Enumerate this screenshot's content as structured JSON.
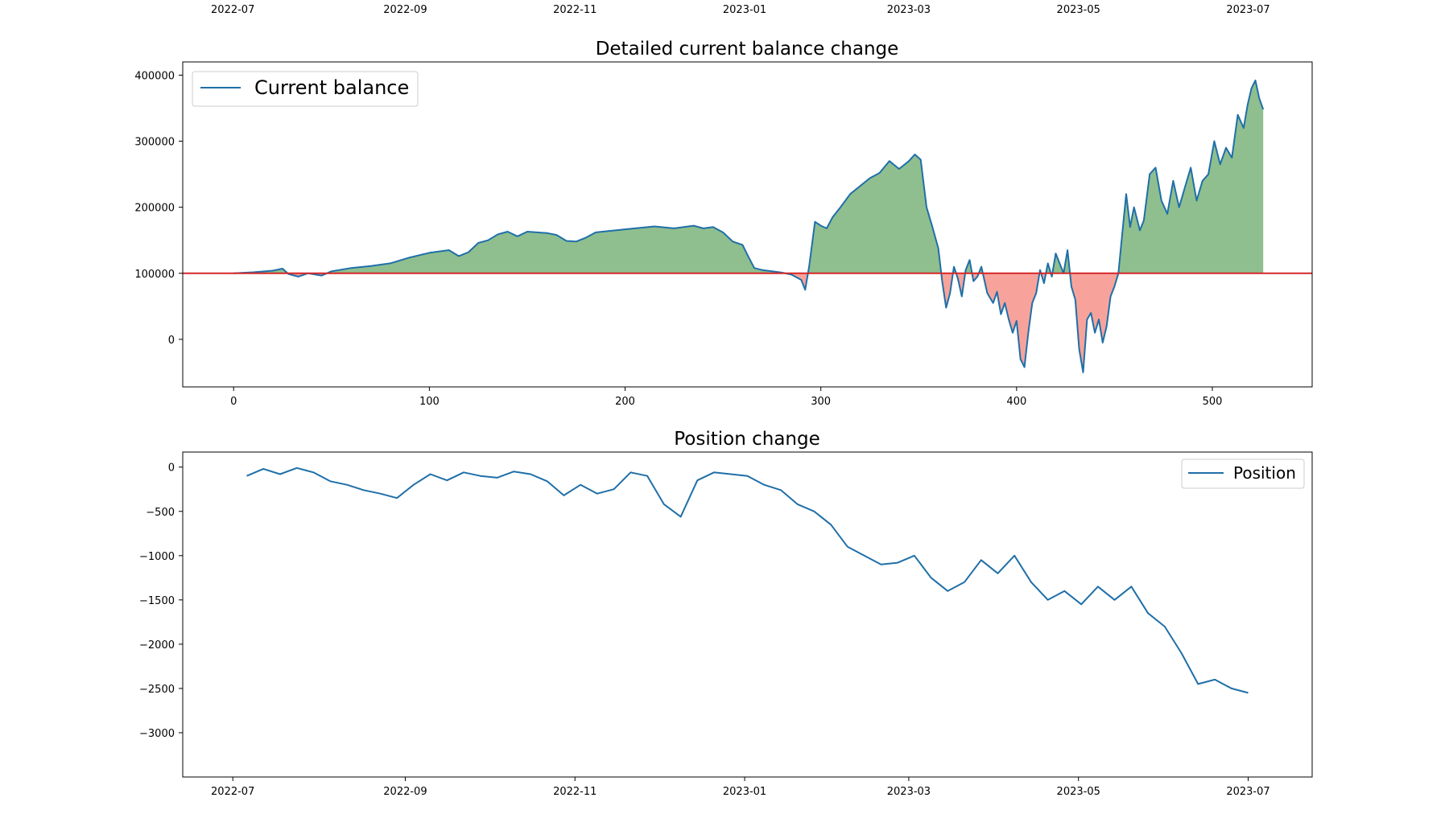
{
  "colors": {
    "line": "#1f6fa8",
    "profit_fill": "#8fbf8f",
    "loss_fill": "#f7a39b",
    "baseline": "#d62728",
    "axes": "#000000",
    "legend_border": "#cccccc"
  },
  "chart_data": [
    {
      "type": "date-axis",
      "position": "top",
      "tick_labels": [
        "2022-07",
        "2022-09",
        "2022-11",
        "2023-01",
        "2023-03",
        "2023-05",
        "2023-07"
      ],
      "tick_dates": [
        "2022-07-01",
        "2022-09-01",
        "2022-11-01",
        "2023-01-01",
        "2023-03-01",
        "2023-05-01",
        "2023-07-01"
      ],
      "xlim": [
        "2022-06-13",
        "2023-07-24"
      ]
    },
    {
      "type": "area",
      "title": "Detailed current balance change",
      "legend": {
        "entries": [
          "Current balance"
        ],
        "placement": "top-left"
      },
      "xlim": [
        -26,
        551
      ],
      "ylim": [
        -72000,
        420000
      ],
      "x_ticks": [
        0,
        100,
        200,
        300,
        400,
        500
      ],
      "y_ticks": [
        0,
        100000,
        200000,
        300000,
        400000
      ],
      "baseline": 100000,
      "fill_above": "profit",
      "fill_below": "loss",
      "series": [
        {
          "name": "Current balance",
          "points": [
            [
              0,
              100000
            ],
            [
              10,
              101500
            ],
            [
              20,
              104000
            ],
            [
              25,
              107000
            ],
            [
              28,
              99000
            ],
            [
              33,
              95000
            ],
            [
              38,
              100000
            ],
            [
              45,
              96500
            ],
            [
              50,
              103000
            ],
            [
              60,
              108000
            ],
            [
              70,
              111000
            ],
            [
              80,
              115000
            ],
            [
              90,
              124000
            ],
            [
              100,
              131000
            ],
            [
              110,
              135000
            ],
            [
              115,
              126000
            ],
            [
              120,
              132000
            ],
            [
              125,
              146000
            ],
            [
              130,
              150000
            ],
            [
              135,
              159000
            ],
            [
              140,
              163000
            ],
            [
              145,
              156000
            ],
            [
              150,
              163000
            ],
            [
              160,
              161000
            ],
            [
              165,
              158000
            ],
            [
              170,
              149000
            ],
            [
              175,
              148000
            ],
            [
              180,
              154000
            ],
            [
              185,
              162000
            ],
            [
              195,
              165000
            ],
            [
              205,
              168000
            ],
            [
              215,
              171000
            ],
            [
              225,
              168000
            ],
            [
              235,
              172000
            ],
            [
              240,
              168000
            ],
            [
              245,
              170000
            ],
            [
              250,
              162000
            ],
            [
              255,
              148000
            ],
            [
              260,
              143000
            ],
            [
              263,
              125000
            ],
            [
              266,
              108000
            ],
            [
              270,
              105000
            ],
            [
              275,
              103000
            ],
            [
              280,
              101000
            ],
            [
              285,
              98000
            ],
            [
              290,
              90000
            ],
            [
              292,
              75000
            ],
            [
              294,
              110000
            ],
            [
              297,
              178000
            ],
            [
              300,
              172000
            ],
            [
              303,
              168000
            ],
            [
              306,
              185000
            ],
            [
              310,
              200000
            ],
            [
              315,
              220000
            ],
            [
              320,
              232000
            ],
            [
              325,
              244000
            ],
            [
              330,
              252000
            ],
            [
              335,
              270000
            ],
            [
              340,
              258000
            ],
            [
              345,
              270000
            ],
            [
              348,
              280000
            ],
            [
              351,
              272000
            ],
            [
              354,
              200000
            ],
            [
              357,
              170000
            ],
            [
              360,
              138000
            ],
            [
              362,
              88000
            ],
            [
              364,
              48000
            ],
            [
              366,
              70000
            ],
            [
              368,
              110000
            ],
            [
              370,
              92000
            ],
            [
              372,
              65000
            ],
            [
              374,
              105000
            ],
            [
              376,
              120000
            ],
            [
              378,
              88000
            ],
            [
              380,
              95000
            ],
            [
              382,
              110000
            ],
            [
              385,
              70000
            ],
            [
              388,
              55000
            ],
            [
              390,
              72000
            ],
            [
              392,
              38000
            ],
            [
              394,
              55000
            ],
            [
              396,
              30000
            ],
            [
              398,
              10000
            ],
            [
              400,
              28000
            ],
            [
              402,
              -30000
            ],
            [
              404,
              -42000
            ],
            [
              406,
              10000
            ],
            [
              408,
              55000
            ],
            [
              410,
              70000
            ],
            [
              412,
              105000
            ],
            [
              414,
              85000
            ],
            [
              416,
              115000
            ],
            [
              418,
              95000
            ],
            [
              420,
              130000
            ],
            [
              422,
              115000
            ],
            [
              424,
              100000
            ],
            [
              426,
              135000
            ],
            [
              428,
              80000
            ],
            [
              430,
              60000
            ],
            [
              432,
              -15000
            ],
            [
              434,
              -50000
            ],
            [
              436,
              30000
            ],
            [
              438,
              40000
            ],
            [
              440,
              10000
            ],
            [
              442,
              30000
            ],
            [
              444,
              -5000
            ],
            [
              446,
              20000
            ],
            [
              448,
              65000
            ],
            [
              450,
              80000
            ],
            [
              452,
              100000
            ],
            [
              454,
              160000
            ],
            [
              456,
              220000
            ],
            [
              458,
              170000
            ],
            [
              460,
              200000
            ],
            [
              463,
              165000
            ],
            [
              465,
              180000
            ],
            [
              468,
              250000
            ],
            [
              471,
              260000
            ],
            [
              474,
              210000
            ],
            [
              477,
              190000
            ],
            [
              480,
              240000
            ],
            [
              483,
              200000
            ],
            [
              486,
              230000
            ],
            [
              489,
              260000
            ],
            [
              492,
              210000
            ],
            [
              495,
              240000
            ],
            [
              498,
              250000
            ],
            [
              501,
              300000
            ],
            [
              504,
              265000
            ],
            [
              507,
              290000
            ],
            [
              510,
              275000
            ],
            [
              513,
              340000
            ],
            [
              516,
              320000
            ],
            [
              518,
              355000
            ],
            [
              520,
              380000
            ],
            [
              522,
              392000
            ],
            [
              524,
              365000
            ],
            [
              526,
              348000
            ]
          ]
        }
      ]
    },
    {
      "type": "line",
      "title": "Position change",
      "legend": {
        "entries": [
          "Position"
        ],
        "placement": "top-right"
      },
      "xlim": [
        "2022-06-13",
        "2023-07-24"
      ],
      "ylim": [
        -3500,
        170
      ],
      "y_ticks": [
        0,
        -500,
        -1000,
        -1500,
        -2000,
        -2500,
        -3000
      ],
      "y_tick_labels": [
        "0",
        "−500",
        "−1000",
        "−1500",
        "−2000",
        "−2500",
        "−3000"
      ],
      "x_ticks": [
        "2022-07-01",
        "2022-09-01",
        "2022-11-01",
        "2023-01-01",
        "2023-03-01",
        "2023-05-01",
        "2023-07-01"
      ],
      "x_tick_labels": [
        "2022-07",
        "2022-09",
        "2022-11",
        "2023-01",
        "2023-03",
        "2023-05",
        "2023-07"
      ],
      "series": [
        {
          "name": "Position",
          "points": [
            [
              "2022-07-06",
              -100
            ],
            [
              "2022-07-12",
              -20
            ],
            [
              "2022-07-18",
              -80
            ],
            [
              "2022-07-24",
              -10
            ],
            [
              "2022-07-30",
              -60
            ],
            [
              "2022-08-05",
              -160
            ],
            [
              "2022-08-11",
              -200
            ],
            [
              "2022-08-17",
              -260
            ],
            [
              "2022-08-23",
              -300
            ],
            [
              "2022-08-29",
              -350
            ],
            [
              "2022-09-04",
              -200
            ],
            [
              "2022-09-10",
              -80
            ],
            [
              "2022-09-16",
              -150
            ],
            [
              "2022-09-22",
              -60
            ],
            [
              "2022-09-28",
              -100
            ],
            [
              "2022-10-04",
              -120
            ],
            [
              "2022-10-10",
              -50
            ],
            [
              "2022-10-16",
              -80
            ],
            [
              "2022-10-22",
              -160
            ],
            [
              "2022-10-28",
              -320
            ],
            [
              "2022-11-03",
              -200
            ],
            [
              "2022-11-09",
              -300
            ],
            [
              "2022-11-15",
              -250
            ],
            [
              "2022-11-21",
              -60
            ],
            [
              "2022-11-27",
              -100
            ],
            [
              "2022-12-03",
              -420
            ],
            [
              "2022-12-09",
              -560
            ],
            [
              "2022-12-15",
              -150
            ],
            [
              "2022-12-21",
              -60
            ],
            [
              "2022-12-27",
              -80
            ],
            [
              "2023-01-02",
              -100
            ],
            [
              "2023-01-08",
              -200
            ],
            [
              "2023-01-14",
              -260
            ],
            [
              "2023-01-20",
              -420
            ],
            [
              "2023-01-26",
              -500
            ],
            [
              "2023-02-01",
              -650
            ],
            [
              "2023-02-07",
              -900
            ],
            [
              "2023-02-13",
              -1000
            ],
            [
              "2023-02-19",
              -1100
            ],
            [
              "2023-02-25",
              -1080
            ],
            [
              "2023-03-03",
              -1000
            ],
            [
              "2023-03-09",
              -1250
            ],
            [
              "2023-03-15",
              -1400
            ],
            [
              "2023-03-21",
              -1300
            ],
            [
              "2023-03-27",
              -1050
            ],
            [
              "2023-04-02",
              -1200
            ],
            [
              "2023-04-08",
              -1000
            ],
            [
              "2023-04-14",
              -1300
            ],
            [
              "2023-04-20",
              -1500
            ],
            [
              "2023-04-26",
              -1400
            ],
            [
              "2023-05-02",
              -1550
            ],
            [
              "2023-05-08",
              -1350
            ],
            [
              "2023-05-14",
              -1500
            ],
            [
              "2023-05-20",
              -1350
            ],
            [
              "2023-05-26",
              -1650
            ],
            [
              "2023-06-01",
              -1800
            ],
            [
              "2023-06-07",
              -2100
            ],
            [
              "2023-06-13",
              -2450
            ],
            [
              "2023-06-19",
              -2400
            ],
            [
              "2023-06-25",
              -2500
            ],
            [
              "2023-07-01",
              -2550
            ]
          ]
        }
      ]
    }
  ]
}
